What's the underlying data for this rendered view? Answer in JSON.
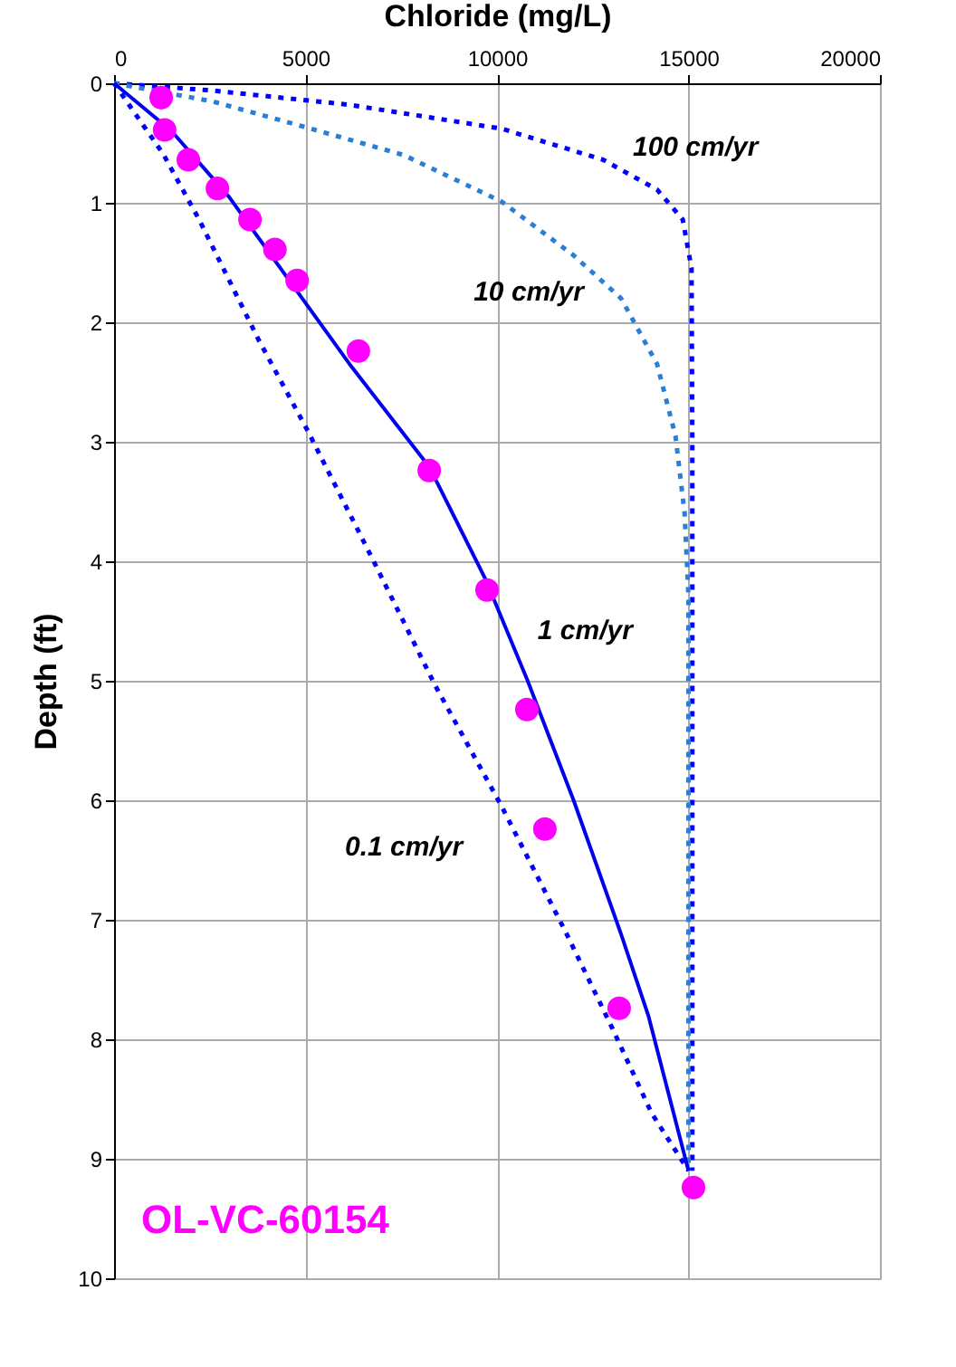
{
  "chart_data": {
    "type": "line",
    "xlabel": "Chloride (mg/L)",
    "ylabel": "Depth (ft)",
    "xlim": [
      0,
      20000
    ],
    "xticks": [
      0,
      5000,
      10000,
      15000,
      20000
    ],
    "ylim": [
      10,
      0
    ],
    "yticks": [
      0,
      1,
      2,
      3,
      4,
      5,
      6,
      7,
      8,
      9,
      10
    ],
    "grid": true,
    "legend": false,
    "series": [
      {
        "type": "line",
        "name": "100 cm/yr",
        "color": "#0000ff",
        "line_style": "dotted",
        "marker": "none",
        "x": [
          0,
          2550,
          6150,
          10120,
          12770,
          14180,
          14850,
          15080,
          15100,
          15100
        ],
        "values": [
          0,
          0.06,
          0.18,
          0.38,
          0.64,
          0.89,
          1.14,
          1.55,
          3,
          9.1
        ]
      },
      {
        "type": "line",
        "name": "10 cm/yr",
        "color": "#2a7fd4",
        "line_style": "dotted",
        "marker": "none",
        "x": [
          0,
          2550,
          4920,
          7560,
          10120,
          12000,
          13240,
          14180,
          14660,
          14900,
          15000,
          15000
        ],
        "values": [
          0,
          0.15,
          0.36,
          0.6,
          0.99,
          1.44,
          1.8,
          2.35,
          2.95,
          3.6,
          4.3,
          9.1
        ]
      },
      {
        "type": "line",
        "name": "1 cm/yr",
        "color": "#0000ee",
        "line_style": "solid",
        "marker": "none",
        "x": [
          0,
          1500,
          3000,
          6150,
          8230,
          9700,
          10800,
          12000,
          13240,
          13950,
          15000
        ],
        "values": [
          0,
          0.4,
          0.95,
          2.35,
          3.21,
          4.15,
          5.0,
          6.0,
          7.12,
          7.8,
          9.1
        ]
      },
      {
        "type": "line",
        "name": "0.1 cm/yr",
        "color": "#0000ff",
        "line_style": "dotted",
        "marker": "none",
        "x": [
          0,
          1280,
          2220,
          3780,
          5060,
          6810,
          8370,
          10120,
          11820,
          13000,
          14040,
          15000
        ],
        "values": [
          0,
          0.59,
          1.14,
          2.15,
          2.91,
          4.02,
          5.03,
          6.05,
          7.12,
          7.9,
          8.62,
          9.1
        ]
      },
      {
        "type": "scatter",
        "name": "OL-VC-60154",
        "color": "#ff00ff",
        "marker": "circle",
        "x": [
          1230,
          1320,
          1940,
          2700,
          3550,
          4200,
          4780,
          6380,
          8230,
          9740,
          10780,
          11250,
          13190,
          15130
        ],
        "values": [
          0.12,
          0.39,
          0.64,
          0.88,
          1.14,
          1.39,
          1.65,
          2.24,
          3.24,
          4.24,
          5.24,
          6.24,
          7.74,
          9.24
        ]
      }
    ]
  }
}
